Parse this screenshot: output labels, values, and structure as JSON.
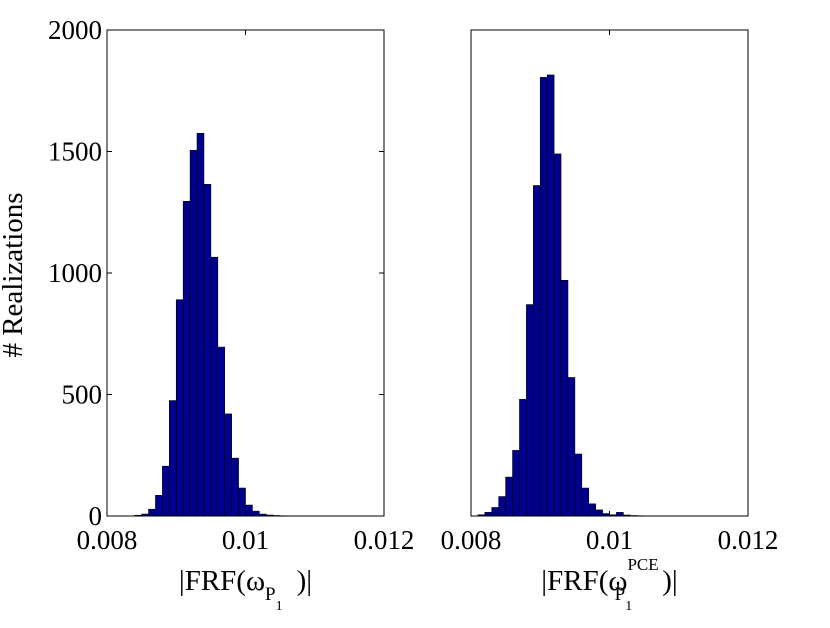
{
  "chart_data": [
    {
      "type": "bar",
      "ylabel": "# Realizations",
      "xlabel": {
        "lead": "|FRF(",
        "symbol": "ω",
        "sup": "",
        "sub": "P",
        "subsub": "1",
        "tail": ")|"
      },
      "xlim": [
        0.008,
        0.012
      ],
      "ylim": [
        0,
        2000
      ],
      "xticks": [
        "0.008",
        "0.01",
        "0.012"
      ],
      "yticks": [
        "0",
        "500",
        "1000",
        "1500",
        "2000"
      ],
      "bin_width": 0.0001,
      "bin_left_edges": [
        0.0084,
        0.0085,
        0.0086,
        0.0087,
        0.0088,
        0.0089,
        0.009,
        0.0091,
        0.0092,
        0.0093,
        0.0094,
        0.0095,
        0.0096,
        0.0097,
        0.0098,
        0.0099,
        0.01,
        0.0101,
        0.0102,
        0.0103,
        0.0104,
        0.0105
      ],
      "values": [
        3,
        8,
        28,
        85,
        205,
        475,
        890,
        1295,
        1505,
        1575,
        1365,
        1065,
        695,
        420,
        238,
        115,
        45,
        20,
        8,
        4,
        2,
        1
      ],
      "grid": false
    },
    {
      "type": "bar",
      "xlabel": {
        "lead": "|FRF(",
        "symbol": "ω",
        "sup": "PCE",
        "sub": "P",
        "subsub": "1",
        "tail": ")|"
      },
      "xlim": [
        0.008,
        0.012
      ],
      "ylim": [
        0,
        2000
      ],
      "xticks": [
        "0.008",
        "0.01",
        "0.012"
      ],
      "yticks": [],
      "bin_width": 0.0001,
      "bin_left_edges": [
        0.0081,
        0.0082,
        0.0083,
        0.0084,
        0.0085,
        0.0086,
        0.0087,
        0.0088,
        0.0089,
        0.009,
        0.0091,
        0.0092,
        0.0093,
        0.0094,
        0.0095,
        0.0096,
        0.0097,
        0.0098,
        0.0099,
        0.01,
        0.0101,
        0.0102,
        0.0103,
        0.0104
      ],
      "values": [
        5,
        15,
        35,
        80,
        160,
        270,
        480,
        870,
        1360,
        1805,
        1815,
        1490,
        970,
        570,
        255,
        115,
        50,
        25,
        10,
        5,
        15,
        4,
        2,
        1
      ],
      "grid": false
    }
  ]
}
